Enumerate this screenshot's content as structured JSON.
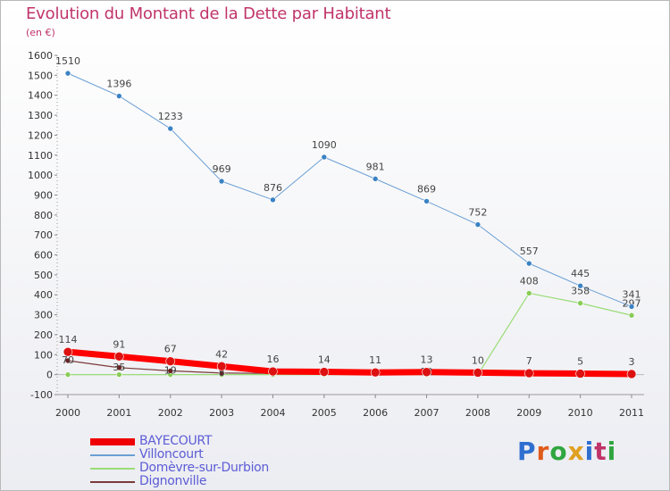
{
  "page": {
    "title": "Evolution du Montant de la Dette par Habitant",
    "unit": "(en €)"
  },
  "logo": {
    "text": "Proxiti",
    "colors": [
      "#2f6fd0",
      "#e05a1a",
      "#2fa63f",
      "#e0a020",
      "#2f6fd0",
      "#c0346a",
      "#2fa63f"
    ]
  },
  "chart_data": {
    "type": "line",
    "title": "Evolution du Montant de la Dette par Habitant",
    "xlabel": "",
    "ylabel": "(en €)",
    "ylim": [
      -100,
      1600
    ],
    "yticks": [
      -100,
      0,
      100,
      200,
      300,
      400,
      500,
      600,
      700,
      800,
      900,
      1000,
      1100,
      1200,
      1300,
      1400,
      1500,
      1600
    ],
    "grid": false,
    "legend_position": "bottom-left",
    "categories": [
      "2000",
      "2001",
      "2002",
      "2003",
      "2004",
      "2005",
      "2006",
      "2007",
      "2008",
      "2009",
      "2010",
      "2011"
    ],
    "series": [
      {
        "name": "BAYECOURT",
        "color": "#ff0000",
        "values": [
          114,
          91,
          67,
          42,
          16,
          14,
          11,
          13,
          10,
          7,
          5,
          3
        ]
      },
      {
        "name": "Villoncourt",
        "color": "#6a9fd4",
        "values": [
          1510,
          1396,
          1233,
          969,
          876,
          1090,
          981,
          869,
          752,
          557,
          445,
          341
        ]
      },
      {
        "name": "Domèvre-sur-Durbion",
        "color": "#99dd77",
        "values": [
          0,
          0,
          0,
          0,
          0,
          0,
          0,
          0,
          0,
          408,
          358,
          297
        ]
      },
      {
        "name": "Dignonville",
        "color": "#7a3a3a",
        "values": [
          70,
          35,
          19,
          8,
          6,
          6,
          3,
          12,
          2,
          2,
          2,
          2
        ]
      }
    ]
  }
}
